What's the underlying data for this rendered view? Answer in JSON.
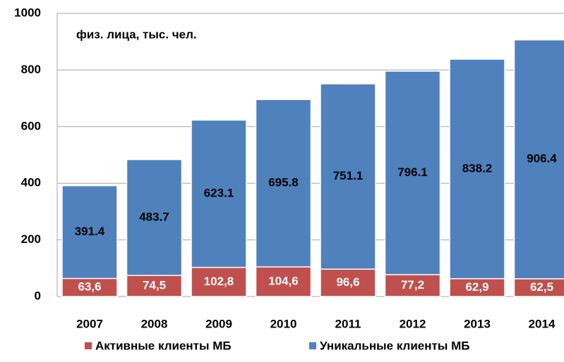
{
  "chart_data": {
    "type": "bar",
    "annotation": "физ. лица, тыс. чел.",
    "categories": [
      "2007",
      "2008",
      "2009",
      "2010",
      "2011",
      "2012",
      "2013",
      "2014"
    ],
    "series": [
      {
        "name": "Уникальные клиенты МБ",
        "color": "#4f81bd",
        "values": [
          391.4,
          483.7,
          623.1,
          695.8,
          751.1,
          796.1,
          838.2,
          906.4
        ]
      },
      {
        "name": "Активные клиенты МБ",
        "color": "#c0504d",
        "values": [
          63.6,
          74.5,
          102.8,
          104.6,
          96.6,
          77.2,
          62.9,
          62.5
        ],
        "value_labels": [
          "63,6",
          "74,5",
          "102,8",
          "104,6",
          "96,6",
          "77,2",
          "62,9",
          "62,5"
        ]
      }
    ],
    "ylim": [
      0,
      1000
    ],
    "yticks": [
      0,
      200,
      400,
      600,
      800,
      1000
    ],
    "grid": true
  }
}
